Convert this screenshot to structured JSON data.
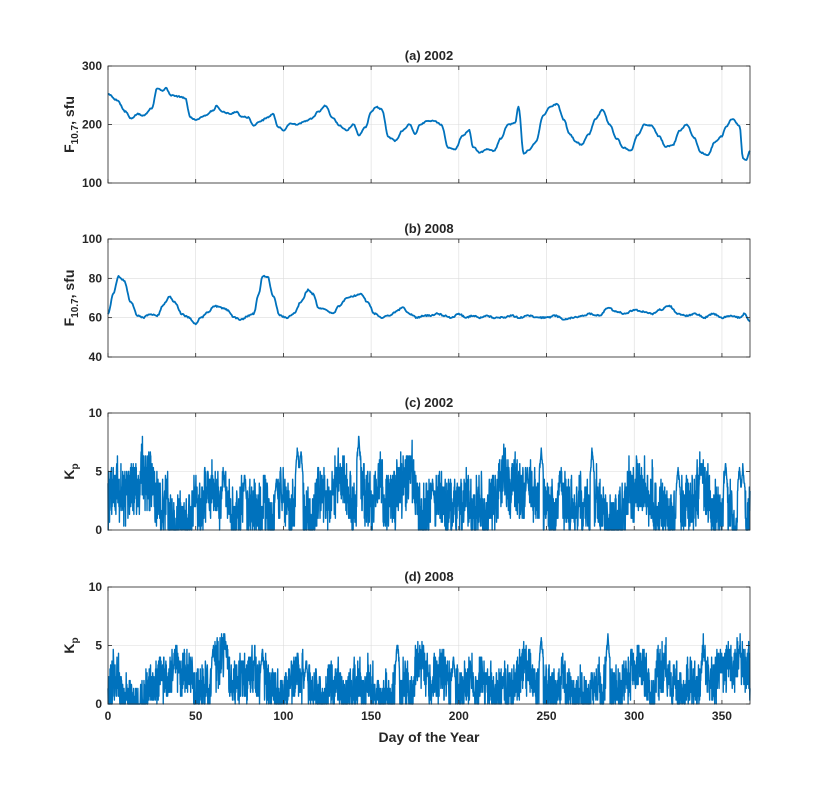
{
  "chart_data": [
    {
      "type": "line",
      "title": "(a) 2002",
      "ylabel_main": "F",
      "ylabel_sub": "10.7",
      "ylabel_suffix": ", sfu",
      "ylim": [
        100,
        300
      ],
      "yticks": [
        100,
        200,
        300
      ],
      "xlim": [
        0,
        366
      ],
      "xticks": [
        0,
        50,
        100,
        150,
        200,
        250,
        300,
        350
      ],
      "show_xtick_labels": false,
      "grid": true,
      "color": "#0072BD",
      "kind": "smooth",
      "noise": 2,
      "anchors": [
        [
          0,
          252
        ],
        [
          5,
          242
        ],
        [
          10,
          222
        ],
        [
          13,
          210
        ],
        [
          17,
          218
        ],
        [
          20,
          215
        ],
        [
          25,
          228
        ],
        [
          28,
          262
        ],
        [
          31,
          258
        ],
        [
          33,
          262
        ],
        [
          36,
          250
        ],
        [
          40,
          248
        ],
        [
          44,
          245
        ],
        [
          47,
          212
        ],
        [
          50,
          208
        ],
        [
          55,
          215
        ],
        [
          60,
          224
        ],
        [
          62,
          232
        ],
        [
          65,
          222
        ],
        [
          70,
          218
        ],
        [
          73,
          222
        ],
        [
          76,
          214
        ],
        [
          80,
          212
        ],
        [
          83,
          198
        ],
        [
          87,
          206
        ],
        [
          91,
          212
        ],
        [
          94,
          218
        ],
        [
          97,
          196
        ],
        [
          100,
          190
        ],
        [
          104,
          202
        ],
        [
          108,
          200
        ],
        [
          112,
          205
        ],
        [
          116,
          210
        ],
        [
          120,
          222
        ],
        [
          124,
          232
        ],
        [
          128,
          212
        ],
        [
          132,
          198
        ],
        [
          136,
          190
        ],
        [
          140,
          200
        ],
        [
          143,
          182
        ],
        [
          147,
          196
        ],
        [
          150,
          222
        ],
        [
          153,
          230
        ],
        [
          156,
          226
        ],
        [
          160,
          178
        ],
        [
          164,
          172
        ],
        [
          168,
          190
        ],
        [
          172,
          200
        ],
        [
          175,
          184
        ],
        [
          178,
          200
        ],
        [
          182,
          206
        ],
        [
          186,
          206
        ],
        [
          190,
          200
        ],
        [
          194,
          160
        ],
        [
          198,
          158
        ],
        [
          202,
          180
        ],
        [
          206,
          190
        ],
        [
          208,
          162
        ],
        [
          212,
          152
        ],
        [
          216,
          158
        ],
        [
          220,
          155
        ],
        [
          224,
          176
        ],
        [
          228,
          200
        ],
        [
          232,
          202
        ],
        [
          234,
          230
        ],
        [
          237,
          150
        ],
        [
          240,
          156
        ],
        [
          244,
          170
        ],
        [
          248,
          215
        ],
        [
          252,
          230
        ],
        [
          256,
          235
        ],
        [
          260,
          208
        ],
        [
          263,
          184
        ],
        [
          267,
          170
        ],
        [
          270,
          165
        ],
        [
          274,
          183
        ],
        [
          278,
          210
        ],
        [
          282,
          225
        ],
        [
          286,
          200
        ],
        [
          290,
          176
        ],
        [
          294,
          160
        ],
        [
          298,
          155
        ],
        [
          302,
          182
        ],
        [
          306,
          200
        ],
        [
          310,
          198
        ],
        [
          314,
          180
        ],
        [
          318,
          162
        ],
        [
          322,
          165
        ],
        [
          326,
          190
        ],
        [
          330,
          200
        ],
        [
          334,
          178
        ],
        [
          338,
          152
        ],
        [
          342,
          148
        ],
        [
          346,
          170
        ],
        [
          350,
          180
        ],
        [
          352,
          195
        ],
        [
          356,
          210
        ],
        [
          360,
          198
        ],
        [
          362,
          142
        ],
        [
          364,
          140
        ],
        [
          366,
          155
        ]
      ]
    },
    {
      "type": "line",
      "title": "(b) 2008",
      "ylabel_main": "F",
      "ylabel_sub": "10.7",
      "ylabel_suffix": ", sfu",
      "ylim": [
        40,
        100
      ],
      "yticks": [
        40,
        60,
        80,
        100
      ],
      "xlim": [
        0,
        366
      ],
      "xticks": [
        0,
        50,
        100,
        150,
        200,
        250,
        300,
        350
      ],
      "show_xtick_labels": false,
      "grid": true,
      "color": "#0072BD",
      "kind": "smooth",
      "noise": 0.8,
      "anchors": [
        [
          0,
          62
        ],
        [
          3,
          72
        ],
        [
          6,
          81
        ],
        [
          9,
          79
        ],
        [
          13,
          68
        ],
        [
          17,
          61
        ],
        [
          20,
          60
        ],
        [
          24,
          62
        ],
        [
          28,
          61
        ],
        [
          32,
          67
        ],
        [
          35,
          71
        ],
        [
          38,
          68
        ],
        [
          42,
          62
        ],
        [
          46,
          60
        ],
        [
          50,
          57
        ],
        [
          53,
          60
        ],
        [
          57,
          63
        ],
        [
          61,
          66
        ],
        [
          65,
          65
        ],
        [
          68,
          64
        ],
        [
          72,
          60
        ],
        [
          76,
          59
        ],
        [
          80,
          61
        ],
        [
          83,
          62
        ],
        [
          86,
          72
        ],
        [
          88,
          81
        ],
        [
          91,
          81
        ],
        [
          94,
          71
        ],
        [
          98,
          61
        ],
        [
          102,
          60
        ],
        [
          106,
          62
        ],
        [
          110,
          68
        ],
        [
          114,
          74
        ],
        [
          117,
          72
        ],
        [
          120,
          65
        ],
        [
          124,
          64
        ],
        [
          128,
          62
        ],
        [
          132,
          66
        ],
        [
          136,
          70
        ],
        [
          140,
          71
        ],
        [
          144,
          72
        ],
        [
          148,
          68
        ],
        [
          152,
          62
        ],
        [
          156,
          60
        ],
        [
          160,
          61
        ],
        [
          164,
          63
        ],
        [
          168,
          65
        ],
        [
          172,
          62
        ],
        [
          176,
          60
        ],
        [
          180,
          61
        ],
        [
          184,
          61
        ],
        [
          188,
          62
        ],
        [
          192,
          61
        ],
        [
          196,
          60
        ],
        [
          200,
          62
        ],
        [
          204,
          60
        ],
        [
          208,
          61
        ],
        [
          212,
          60
        ],
        [
          216,
          61
        ],
        [
          220,
          60
        ],
        [
          225,
          60
        ],
        [
          230,
          61
        ],
        [
          235,
          60
        ],
        [
          240,
          61
        ],
        [
          245,
          60
        ],
        [
          250,
          60
        ],
        [
          255,
          61
        ],
        [
          260,
          59
        ],
        [
          265,
          60
        ],
        [
          270,
          61
        ],
        [
          275,
          62
        ],
        [
          280,
          61
        ],
        [
          285,
          65
        ],
        [
          290,
          63
        ],
        [
          295,
          62
        ],
        [
          300,
          64
        ],
        [
          305,
          63
        ],
        [
          310,
          62
        ],
        [
          315,
          64
        ],
        [
          320,
          66
        ],
        [
          325,
          62
        ],
        [
          330,
          61
        ],
        [
          335,
          62
        ],
        [
          340,
          60
        ],
        [
          345,
          62
        ],
        [
          350,
          60
        ],
        [
          355,
          61
        ],
        [
          360,
          60
        ],
        [
          363,
          62
        ],
        [
          366,
          58
        ]
      ]
    },
    {
      "type": "line",
      "title": "(c) 2002",
      "ylabel_main": "K",
      "ylabel_sub": "p",
      "ylabel_suffix": "",
      "ylim": [
        0,
        10
      ],
      "yticks": [
        0,
        5,
        10
      ],
      "xlim": [
        0,
        366
      ],
      "xticks": [
        0,
        50,
        100,
        150,
        200,
        250,
        300,
        350
      ],
      "show_xtick_labels": false,
      "grid": true,
      "color": "#0072BD",
      "kind": "kp",
      "base": 2.3,
      "amp": 2.4,
      "seed": 7,
      "peaks": [
        [
          108,
          7.2
        ],
        [
          110,
          7.1
        ],
        [
          143,
          8.2
        ],
        [
          132,
          4.5
        ],
        [
          185,
          4.6
        ],
        [
          239,
          5.4
        ],
        [
          247,
          7.2
        ],
        [
          276,
          7.1
        ],
        [
          258,
          4.9
        ],
        [
          66,
          5.2
        ],
        [
          78,
          4.7
        ],
        [
          96,
          4.6
        ],
        [
          325,
          5.6
        ],
        [
          338,
          5.8
        ],
        [
          352,
          5.9
        ],
        [
          360,
          5.7
        ],
        [
          362,
          5.8
        ]
      ]
    },
    {
      "type": "line",
      "title": "(d) 2008",
      "ylabel_main": "K",
      "ylabel_sub": "p",
      "ylabel_suffix": "",
      "xlabel": "Day of the Year",
      "ylim": [
        0,
        10
      ],
      "yticks": [
        0,
        5,
        10
      ],
      "xlim": [
        0,
        366
      ],
      "xticks": [
        0,
        50,
        100,
        150,
        200,
        250,
        300,
        350
      ],
      "show_xtick_labels": true,
      "grid": true,
      "color": "#0072BD",
      "kind": "kp",
      "base": 1.6,
      "amp": 2.0,
      "seed": 13,
      "peaks": [
        [
          60,
          5.3
        ],
        [
          67,
          5.5
        ],
        [
          88,
          5.0
        ],
        [
          165,
          5.6
        ],
        [
          247,
          6.0
        ],
        [
          285,
          6.1
        ],
        [
          197,
          4.3
        ],
        [
          113,
          4.2
        ]
      ]
    }
  ]
}
